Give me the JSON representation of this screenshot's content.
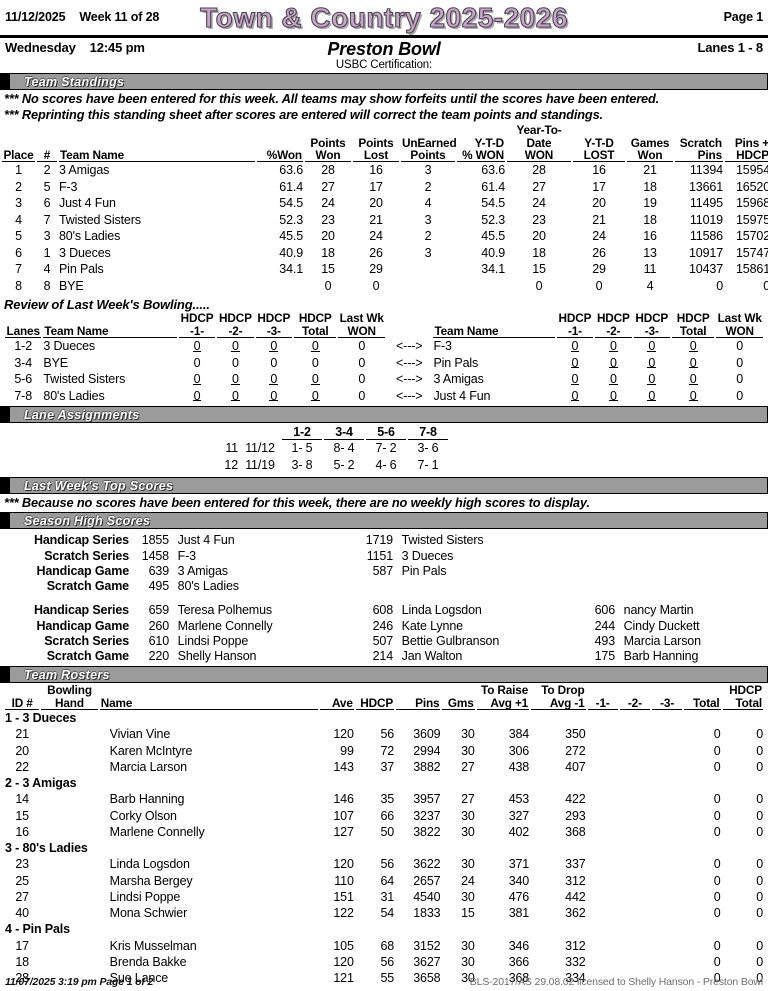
{
  "header": {
    "date": "11/12/2025",
    "week": "Week 11 of 28",
    "league_title": "Town & Country 2025-2026",
    "page": "Page 1",
    "day": "Wednesday",
    "time": "12:45 pm",
    "center_name": "Preston Bowl",
    "lanes": "Lanes 1 - 8",
    "certification_label": "USBC Certification:"
  },
  "section_titles": {
    "team_standings": "Team Standings",
    "lane_assignments": "Lane Assignments",
    "last_week_top_scores": "Last Week's Top Scores",
    "season_high_scores": "Season High Scores",
    "team_rosters": "Team Rosters"
  },
  "notes": {
    "no_scores_1": "*** No scores have been entered for this week. All teams may show forfeits until the scores have been entered.",
    "no_scores_2": "*** Reprinting this standing sheet after scores are entered will correct the team points and standings.",
    "no_weekly_high": "*** Because no scores have been entered for this week, there are no weekly high scores to display."
  },
  "standings": {
    "headers": [
      [
        "Place",
        ""
      ],
      [
        "#",
        ""
      ],
      [
        "Team Name",
        ""
      ],
      [
        "%Won",
        ""
      ],
      [
        "Points",
        "Won"
      ],
      [
        "Points",
        "Lost"
      ],
      [
        "UnEarned",
        "Points"
      ],
      [
        "Y-T-D",
        "% WON"
      ],
      [
        "Year-To-Date",
        "WON"
      ],
      [
        "Y-T-D",
        "LOST"
      ],
      [
        "Games",
        "Won"
      ],
      [
        "Scratch",
        "Pins"
      ],
      [
        "Pins +",
        "HDCP"
      ]
    ],
    "rows": [
      [
        "1",
        "2",
        "3 Amigas",
        "63.6",
        "28",
        "16",
        "3",
        "63.6",
        "28",
        "16",
        "21",
        "11394",
        "15954"
      ],
      [
        "2",
        "5",
        "F-3",
        "61.4",
        "27",
        "17",
        "2",
        "61.4",
        "27",
        "17",
        "18",
        "13661",
        "16520"
      ],
      [
        "3",
        "6",
        "Just 4 Fun",
        "54.5",
        "24",
        "20",
        "4",
        "54.5",
        "24",
        "20",
        "19",
        "11495",
        "15968"
      ],
      [
        "4",
        "7",
        "Twisted Sisters",
        "52.3",
        "23",
        "21",
        "3",
        "52.3",
        "23",
        "21",
        "18",
        "11019",
        "15975"
      ],
      [
        "5",
        "3",
        "80's Ladies",
        "45.5",
        "20",
        "24",
        "2",
        "45.5",
        "20",
        "24",
        "16",
        "11586",
        "15702"
      ],
      [
        "6",
        "1",
        "3 Dueces",
        "40.9",
        "18",
        "26",
        "3",
        "40.9",
        "18",
        "26",
        "13",
        "10917",
        "15747"
      ],
      [
        "7",
        "4",
        "Pin Pals",
        "34.1",
        "15",
        "29",
        "",
        "34.1",
        "15",
        "29",
        "11",
        "10437",
        "15861"
      ],
      [
        "8",
        "8",
        "BYE",
        "",
        "0",
        "0",
        "",
        "",
        "0",
        "0",
        "4",
        "0",
        "0"
      ]
    ]
  },
  "review": {
    "title": "Review of Last Week's Bowling.....",
    "headers": {
      "lanes": "Lanes",
      "team_name": "Team Name",
      "g1": [
        "HDCP",
        "-1-"
      ],
      "g2": [
        "HDCP",
        "-2-"
      ],
      "g3": [
        "HDCP",
        "-3-"
      ],
      "total": [
        "HDCP",
        "Total"
      ],
      "won": [
        "Last Wk",
        "WON"
      ],
      "arrow": "<--->"
    },
    "rows": [
      {
        "lanes": "1-2",
        "left": {
          "name": "3 Dueces",
          "games": [
            "0",
            "0",
            "0",
            "0"
          ],
          "won": "0",
          "struck": true
        },
        "right": {
          "name": "F-3",
          "games": [
            "0",
            "0",
            "0",
            "0"
          ],
          "won": "0",
          "struck": true
        }
      },
      {
        "lanes": "3-4",
        "left": {
          "name": "BYE",
          "games": [
            "0",
            "0",
            "0",
            "0"
          ],
          "won": "0",
          "struck": false
        },
        "right": {
          "name": "Pin Pals",
          "games": [
            "0",
            "0",
            "0",
            "0"
          ],
          "won": "0",
          "struck": true
        }
      },
      {
        "lanes": "5-6",
        "left": {
          "name": "Twisted Sisters",
          "games": [
            "0",
            "0",
            "0",
            "0"
          ],
          "won": "0",
          "struck": true
        },
        "right": {
          "name": "3 Amigas",
          "games": [
            "0",
            "0",
            "0",
            "0"
          ],
          "won": "0",
          "struck": true
        }
      },
      {
        "lanes": "7-8",
        "left": {
          "name": "80's Ladies",
          "games": [
            "0",
            "0",
            "0",
            "0"
          ],
          "won": "0",
          "struck": true
        },
        "right": {
          "name": "Just 4 Fun",
          "games": [
            "0",
            "0",
            "0",
            "0"
          ],
          "won": "0",
          "struck": true
        }
      }
    ]
  },
  "lane_assignments": {
    "pair_headers": [
      "1-2",
      "3-4",
      "5-6",
      "7-8"
    ],
    "rows": [
      {
        "week": "11",
        "date": "11/12",
        "pairs": [
          "1- 5",
          "8- 4",
          "7- 2",
          "3- 6"
        ]
      },
      {
        "week": "12",
        "date": "11/19",
        "pairs": [
          "3- 8",
          "5- 2",
          "4- 6",
          "7- 1"
        ]
      }
    ]
  },
  "season_high": {
    "team": [
      {
        "label": "Handicap Series",
        "entries": [
          {
            "score": "1855",
            "name": "Just 4 Fun"
          },
          {
            "score": "1719",
            "name": "Twisted Sisters"
          }
        ]
      },
      {
        "label": "Scratch Series",
        "entries": [
          {
            "score": "1458",
            "name": "F-3"
          },
          {
            "score": "1151",
            "name": "3 Dueces"
          }
        ]
      },
      {
        "label": "Handicap Game",
        "entries": [
          {
            "score": "639",
            "name": "3 Amigas"
          },
          {
            "score": "587",
            "name": "Pin Pals"
          }
        ]
      },
      {
        "label": "Scratch Game",
        "entries": [
          {
            "score": "495",
            "name": "80's Ladies"
          }
        ]
      }
    ],
    "individual": [
      {
        "label": "Handicap Series",
        "entries": [
          {
            "score": "659",
            "name": "Teresa Polhemus"
          },
          {
            "score": "608",
            "name": "Linda Logsdon"
          },
          {
            "score": "606",
            "name": "nancy Martin"
          }
        ]
      },
      {
        "label": "Handicap Game",
        "entries": [
          {
            "score": "260",
            "name": "Marlene Connelly"
          },
          {
            "score": "246",
            "name": "Kate Lynne"
          },
          {
            "score": "244",
            "name": "Cindy Duckett"
          }
        ]
      },
      {
        "label": "Scratch Series",
        "entries": [
          {
            "score": "610",
            "name": "Lindsi Poppe"
          },
          {
            "score": "507",
            "name": "Bettie Gulbranson"
          },
          {
            "score": "493",
            "name": "Marcia Larson"
          }
        ]
      },
      {
        "label": "Scratch Game",
        "entries": [
          {
            "score": "220",
            "name": "Shelly Hanson"
          },
          {
            "score": "214",
            "name": "Jan Walton"
          },
          {
            "score": "175",
            "name": "Barb Hanning"
          }
        ]
      }
    ]
  },
  "rosters": {
    "headers": [
      [
        "ID #",
        ""
      ],
      [
        "Bowling",
        "Hand"
      ],
      [
        "Name",
        ""
      ],
      [
        "Ave",
        ""
      ],
      [
        "HDCP",
        ""
      ],
      [
        "Pins",
        ""
      ],
      [
        "Gms",
        ""
      ],
      [
        "To Raise",
        "Avg +1"
      ],
      [
        "To Drop",
        "Avg -1"
      ],
      [
        "-1-",
        ""
      ],
      [
        "-2-",
        ""
      ],
      [
        "-3-",
        ""
      ],
      [
        "Total",
        ""
      ],
      [
        "HDCP",
        "Total"
      ]
    ],
    "teams": [
      {
        "team": "1 - 3 Dueces",
        "players": [
          {
            "id": "21",
            "hand": "",
            "name": "Vivian Vine",
            "ave": "120",
            "hdcp": "56",
            "pins": "3609",
            "gms": "30",
            "raise": "384",
            "drop": "350",
            "g1": "",
            "g2": "",
            "g3": "",
            "total": "0",
            "hdcp_total": "0"
          },
          {
            "id": "20",
            "hand": "",
            "name": "Karen McIntyre",
            "ave": "99",
            "hdcp": "72",
            "pins": "2994",
            "gms": "30",
            "raise": "306",
            "drop": "272",
            "g1": "",
            "g2": "",
            "g3": "",
            "total": "0",
            "hdcp_total": "0"
          },
          {
            "id": "22",
            "hand": "",
            "name": "Marcia Larson",
            "ave": "143",
            "hdcp": "37",
            "pins": "3882",
            "gms": "27",
            "raise": "438",
            "drop": "407",
            "g1": "",
            "g2": "",
            "g3": "",
            "total": "0",
            "hdcp_total": "0"
          }
        ]
      },
      {
        "team": "2 - 3 Amigas",
        "players": [
          {
            "id": "14",
            "hand": "",
            "name": "Barb Hanning",
            "ave": "146",
            "hdcp": "35",
            "pins": "3957",
            "gms": "27",
            "raise": "453",
            "drop": "422",
            "g1": "",
            "g2": "",
            "g3": "",
            "total": "0",
            "hdcp_total": "0"
          },
          {
            "id": "15",
            "hand": "",
            "name": "Corky Olson",
            "ave": "107",
            "hdcp": "66",
            "pins": "3237",
            "gms": "30",
            "raise": "327",
            "drop": "293",
            "g1": "",
            "g2": "",
            "g3": "",
            "total": "0",
            "hdcp_total": "0"
          },
          {
            "id": "16",
            "hand": "",
            "name": "Marlene Connelly",
            "ave": "127",
            "hdcp": "50",
            "pins": "3822",
            "gms": "30",
            "raise": "402",
            "drop": "368",
            "g1": "",
            "g2": "",
            "g3": "",
            "total": "0",
            "hdcp_total": "0"
          }
        ]
      },
      {
        "team": "3 - 80's Ladies",
        "players": [
          {
            "id": "23",
            "hand": "",
            "name": "Linda Logsdon",
            "ave": "120",
            "hdcp": "56",
            "pins": "3622",
            "gms": "30",
            "raise": "371",
            "drop": "337",
            "g1": "",
            "g2": "",
            "g3": "",
            "total": "0",
            "hdcp_total": "0"
          },
          {
            "id": "25",
            "hand": "",
            "name": "Marsha Bergey",
            "ave": "110",
            "hdcp": "64",
            "pins": "2657",
            "gms": "24",
            "raise": "340",
            "drop": "312",
            "g1": "",
            "g2": "",
            "g3": "",
            "total": "0",
            "hdcp_total": "0"
          },
          {
            "id": "27",
            "hand": "",
            "name": "Lindsi Poppe",
            "ave": "151",
            "hdcp": "31",
            "pins": "4540",
            "gms": "30",
            "raise": "476",
            "drop": "442",
            "g1": "",
            "g2": "",
            "g3": "",
            "total": "0",
            "hdcp_total": "0"
          },
          {
            "id": "40",
            "hand": "",
            "name": "Mona Schwier",
            "ave": "122",
            "hdcp": "54",
            "pins": "1833",
            "gms": "15",
            "raise": "381",
            "drop": "362",
            "g1": "",
            "g2": "",
            "g3": "",
            "total": "0",
            "hdcp_total": "0"
          }
        ]
      },
      {
        "team": "4 - Pin Pals",
        "players": [
          {
            "id": "17",
            "hand": "",
            "name": "Kris Musselman",
            "ave": "105",
            "hdcp": "68",
            "pins": "3152",
            "gms": "30",
            "raise": "346",
            "drop": "312",
            "g1": "",
            "g2": "",
            "g3": "",
            "total": "0",
            "hdcp_total": "0"
          },
          {
            "id": "18",
            "hand": "",
            "name": "Brenda Bakke",
            "ave": "120",
            "hdcp": "56",
            "pins": "3627",
            "gms": "30",
            "raise": "366",
            "drop": "332",
            "g1": "",
            "g2": "",
            "g3": "",
            "total": "0",
            "hdcp_total": "0"
          },
          {
            "id": "28",
            "hand": "",
            "name": "Sue Lance",
            "ave": "121",
            "hdcp": "55",
            "pins": "3658",
            "gms": "30",
            "raise": "368",
            "drop": "334",
            "g1": "",
            "g2": "",
            "g3": "",
            "total": "0",
            "hdcp_total": "0"
          }
        ]
      }
    ]
  },
  "footer": {
    "left": "11/07/2025  3:19 pm   Page 1 of 2",
    "right": "BLS-2017/AS 29.08.02 licensed to Shelly Hanson - Preston Bowl"
  }
}
